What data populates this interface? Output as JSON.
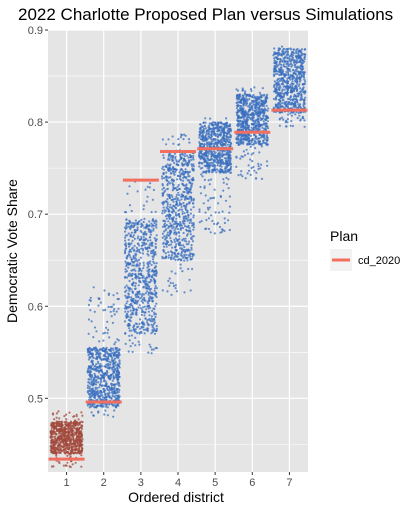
{
  "chart_data": {
    "type": "scatter",
    "title": "2022 Charlotte Proposed Plan versus Simulations",
    "xlabel": "Ordered district",
    "ylabel": "Democratic Vote Share",
    "categories": [
      "1",
      "2",
      "3",
      "4",
      "5",
      "6",
      "7"
    ],
    "yticks": [
      "0.5",
      "0.6",
      "0.7",
      "0.8",
      "0.9"
    ],
    "ylim": [
      0.42,
      0.9
    ],
    "grid": true,
    "legend": {
      "title": "Plan",
      "placement": "right",
      "entries": [
        "cd_2020"
      ]
    },
    "colors": {
      "panel": "#e5e5e5",
      "grid": "#ffffff",
      "point_blue": "#3a6fbf",
      "point_red": "#a24a3c",
      "plan_line": "#f26e5f"
    },
    "simulations": [
      {
        "district": "1",
        "min": 0.425,
        "max": 0.487,
        "dense_min": 0.44,
        "dense_max": 0.475
      },
      {
        "district": "2",
        "min": 0.478,
        "max": 0.621,
        "dense_min": 0.49,
        "dense_max": 0.555
      },
      {
        "district": "3",
        "min": 0.548,
        "max": 0.738,
        "dense_min": 0.57,
        "dense_max": 0.695
      },
      {
        "district": "4",
        "min": 0.612,
        "max": 0.787,
        "dense_min": 0.65,
        "dense_max": 0.77
      },
      {
        "district": "5",
        "min": 0.678,
        "max": 0.807,
        "dense_min": 0.745,
        "dense_max": 0.8
      },
      {
        "district": "6",
        "min": 0.738,
        "max": 0.838,
        "dense_min": 0.775,
        "dense_max": 0.83
      },
      {
        "district": "7",
        "min": 0.793,
        "max": 0.883,
        "dense_min": 0.81,
        "dense_max": 0.88
      }
    ],
    "plan": {
      "name": "cd_2020",
      "values": [
        0.434,
        0.496,
        0.737,
        0.768,
        0.771,
        0.789,
        0.813
      ]
    }
  }
}
